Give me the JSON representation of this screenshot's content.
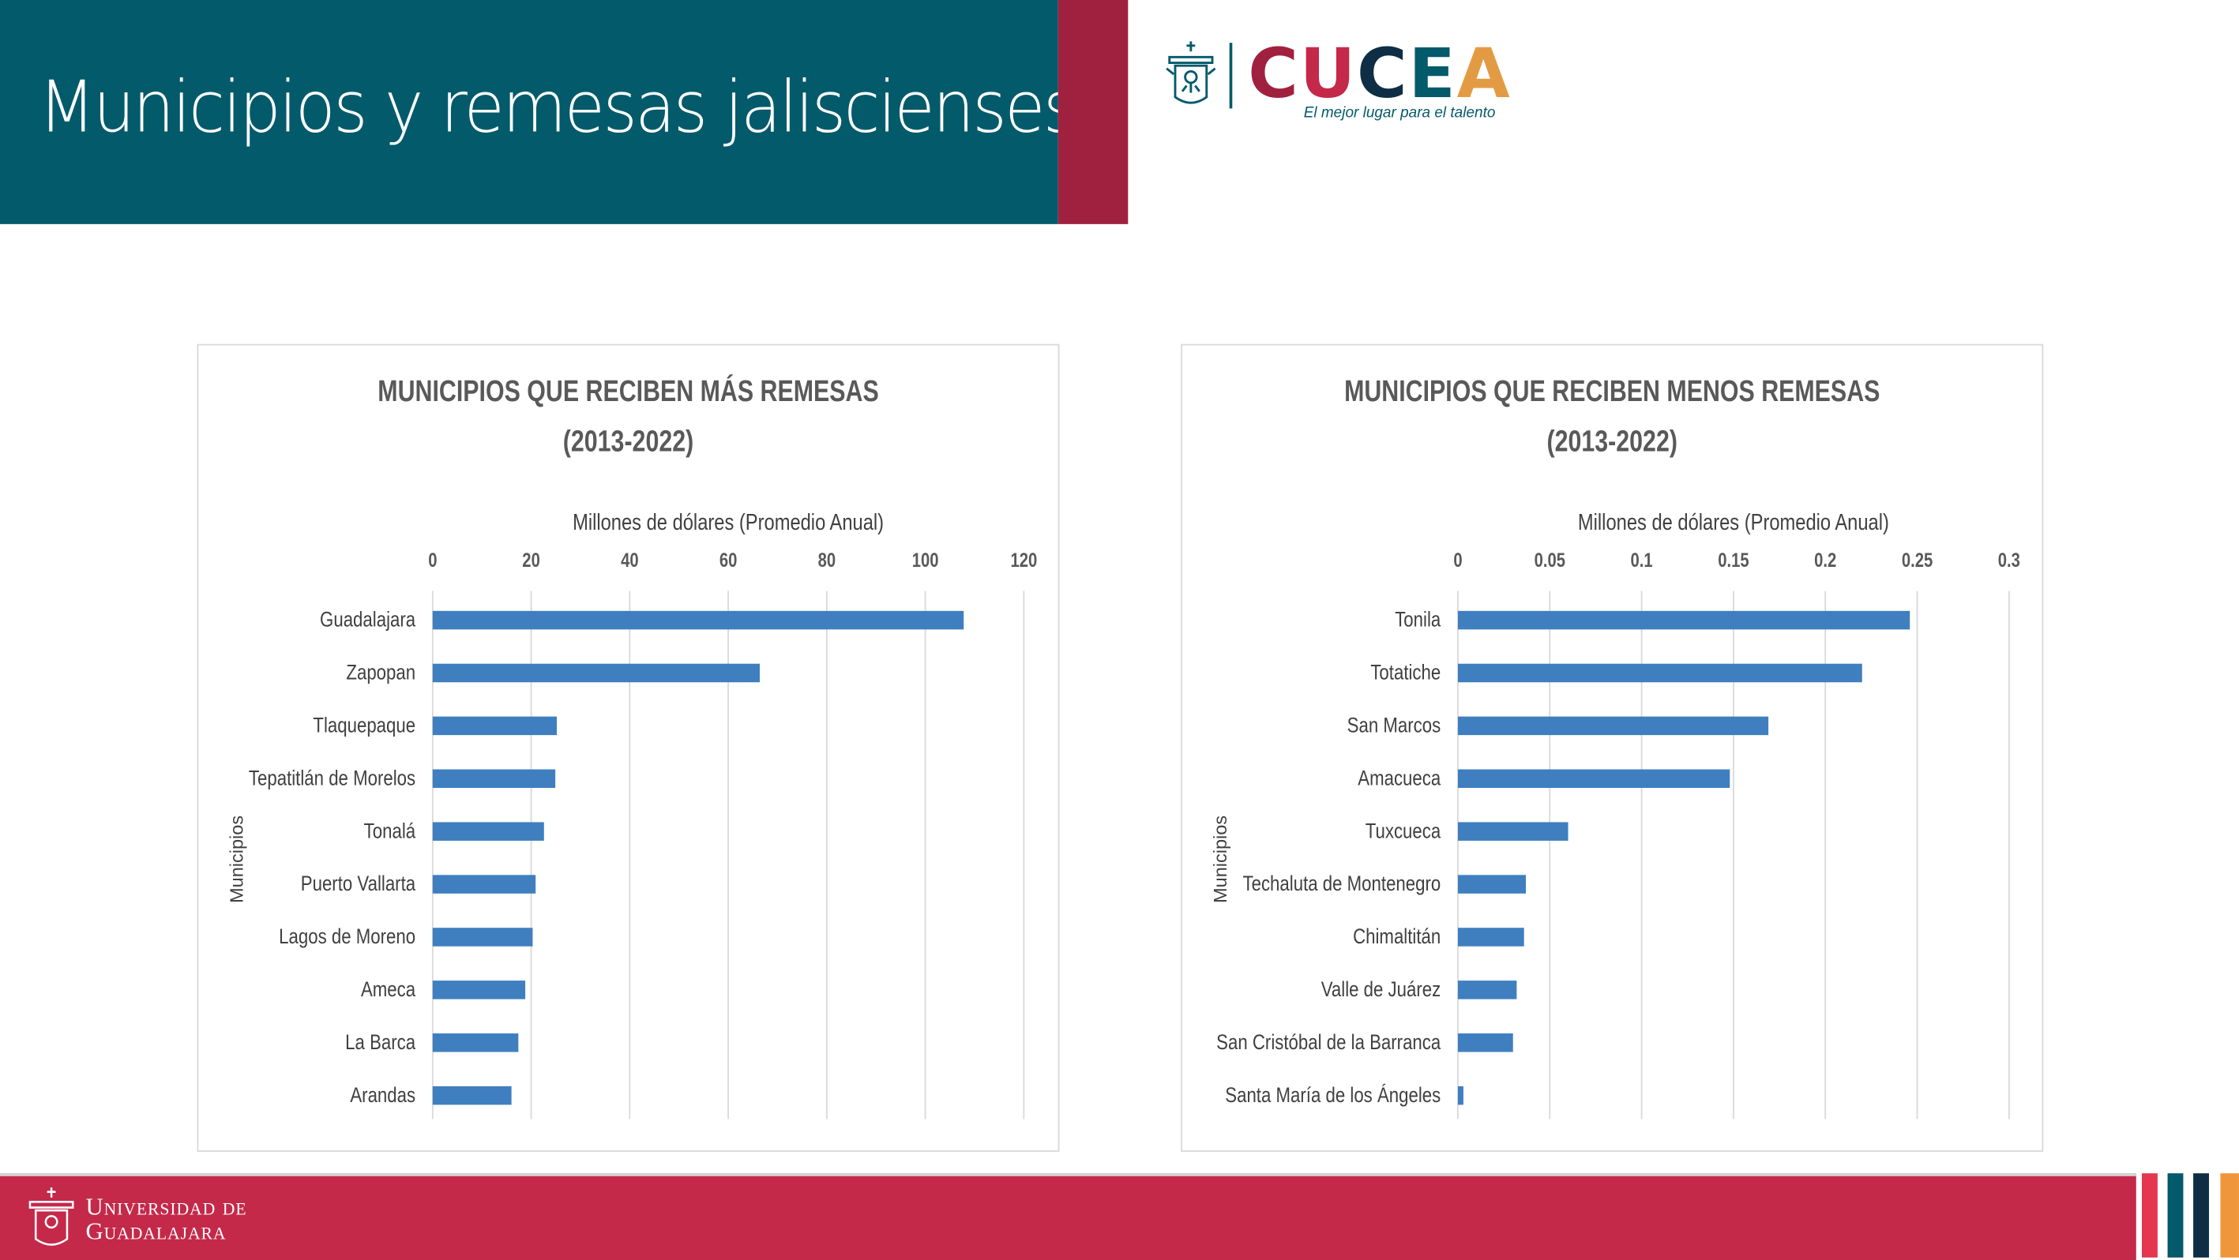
{
  "header": {
    "title": "Municipios y remesas jaliscienses I"
  },
  "logo": {
    "letters": [
      "C",
      "U",
      "C",
      "E",
      "A"
    ],
    "letter_colors": [
      "#a0213f",
      "#c4294a",
      "#0d2e45",
      "#035a6b",
      "#e39b43"
    ],
    "tagline": "El mejor lugar para el talento"
  },
  "footer": {
    "line1": "Universidad de",
    "line2": "Guadalajara"
  },
  "colors": {
    "header_bg": "#035a6b",
    "accent": "#a0213f",
    "footer_bg": "#c4294a",
    "bar": "#3f7fbf",
    "stripes": [
      "#e5364f",
      "#035a6b",
      "#0d2e45",
      "#f0963a"
    ]
  },
  "chart_data": [
    {
      "type": "bar",
      "orientation": "horizontal",
      "title": [
        "MUNICIPIOS QUE RECIBEN MÁS REMESAS",
        "(2013-2022)"
      ],
      "xlabel": "Millones de dólares (Promedio Anual)",
      "ylabel": "Municipios",
      "xlim": [
        0,
        120
      ],
      "xticks": [
        "0",
        "20",
        "40",
        "60",
        "80",
        "100",
        "120"
      ],
      "xtick_values": [
        0,
        20,
        40,
        60,
        80,
        100,
        120
      ],
      "grid": true,
      "categories": [
        "Guadalajara",
        "Zapopan",
        "Tlaquepaque",
        "Tepatitlán de Morelos",
        "Tonalá",
        "Puerto Vallarta",
        "Lagos de Moreno",
        "Ameca",
        "La Barca",
        "Arandas"
      ],
      "values": [
        107.8,
        66.4,
        25.2,
        24.9,
        22.6,
        20.9,
        20.3,
        18.8,
        17.4,
        16.0
      ]
    },
    {
      "type": "bar",
      "orientation": "horizontal",
      "title": [
        "MUNICIPIOS QUE RECIBEN MENOS REMESAS",
        "(2013-2022)"
      ],
      "xlabel": "Millones de dólares (Promedio Anual)",
      "ylabel": "Municipios",
      "xlim": [
        0,
        0.3
      ],
      "xticks": [
        "0",
        "0.05",
        "0.1",
        "0.15",
        "0.2",
        "0.25",
        "0.3"
      ],
      "xtick_values": [
        0,
        0.05,
        0.1,
        0.15,
        0.2,
        0.25,
        0.3
      ],
      "grid": true,
      "categories": [
        "Tonila",
        "Totatiche",
        "San Marcos",
        "Amacueca",
        "Tuxcueca",
        "Techaluta de Montenegro",
        "Chimaltitán",
        "Valle de Juárez",
        "San Cristóbal de la Barranca",
        "Santa María de los Ángeles"
      ],
      "values": [
        0.246,
        0.22,
        0.169,
        0.148,
        0.06,
        0.037,
        0.036,
        0.032,
        0.03,
        0.003
      ]
    }
  ]
}
